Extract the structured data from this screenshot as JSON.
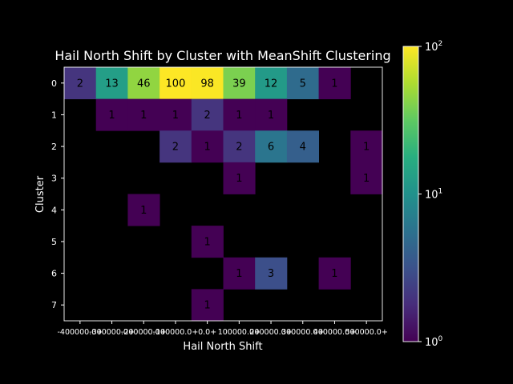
{
  "chart_data": {
    "type": "heatmap",
    "title": "Hail North Shift by Cluster with MeanShift Clustering",
    "xlabel": "Hail North Shift",
    "ylabel": "Cluster",
    "x_categories": [
      "-400000.0+",
      "-300000.0+",
      "-200000.0+",
      "-100000.0+",
      "0.0+",
      "100000.0+",
      "200000.0+",
      "300000.0+",
      "400000.0+",
      "500000.0+"
    ],
    "y_categories": [
      "0",
      "1",
      "2",
      "3",
      "4",
      "5",
      "6",
      "7"
    ],
    "values": [
      [
        2,
        13,
        46,
        100,
        98,
        39,
        12,
        5,
        1,
        null
      ],
      [
        null,
        1,
        1,
        1,
        2,
        1,
        1,
        null,
        null,
        null
      ],
      [
        null,
        null,
        null,
        2,
        1,
        2,
        6,
        4,
        null,
        1
      ],
      [
        null,
        null,
        null,
        null,
        null,
        1,
        null,
        null,
        null,
        1
      ],
      [
        null,
        null,
        1,
        null,
        null,
        null,
        null,
        null,
        null,
        null
      ],
      [
        null,
        null,
        null,
        null,
        1,
        null,
        null,
        null,
        null,
        null
      ],
      [
        null,
        null,
        null,
        null,
        null,
        1,
        3,
        null,
        1,
        null
      ],
      [
        null,
        null,
        null,
        null,
        1,
        null,
        null,
        null,
        null,
        null
      ]
    ],
    "color_scale": "log",
    "colormap": "viridis",
    "colorbar_range": [
      1,
      100
    ],
    "colorbar_ticks": [
      {
        "base": "10",
        "exp": "0"
      },
      {
        "base": "10",
        "exp": "1"
      },
      {
        "base": "10",
        "exp": "2"
      }
    ],
    "background": "#000000",
    "text_color": "#ffffff",
    "annotation_color": "#000000"
  }
}
